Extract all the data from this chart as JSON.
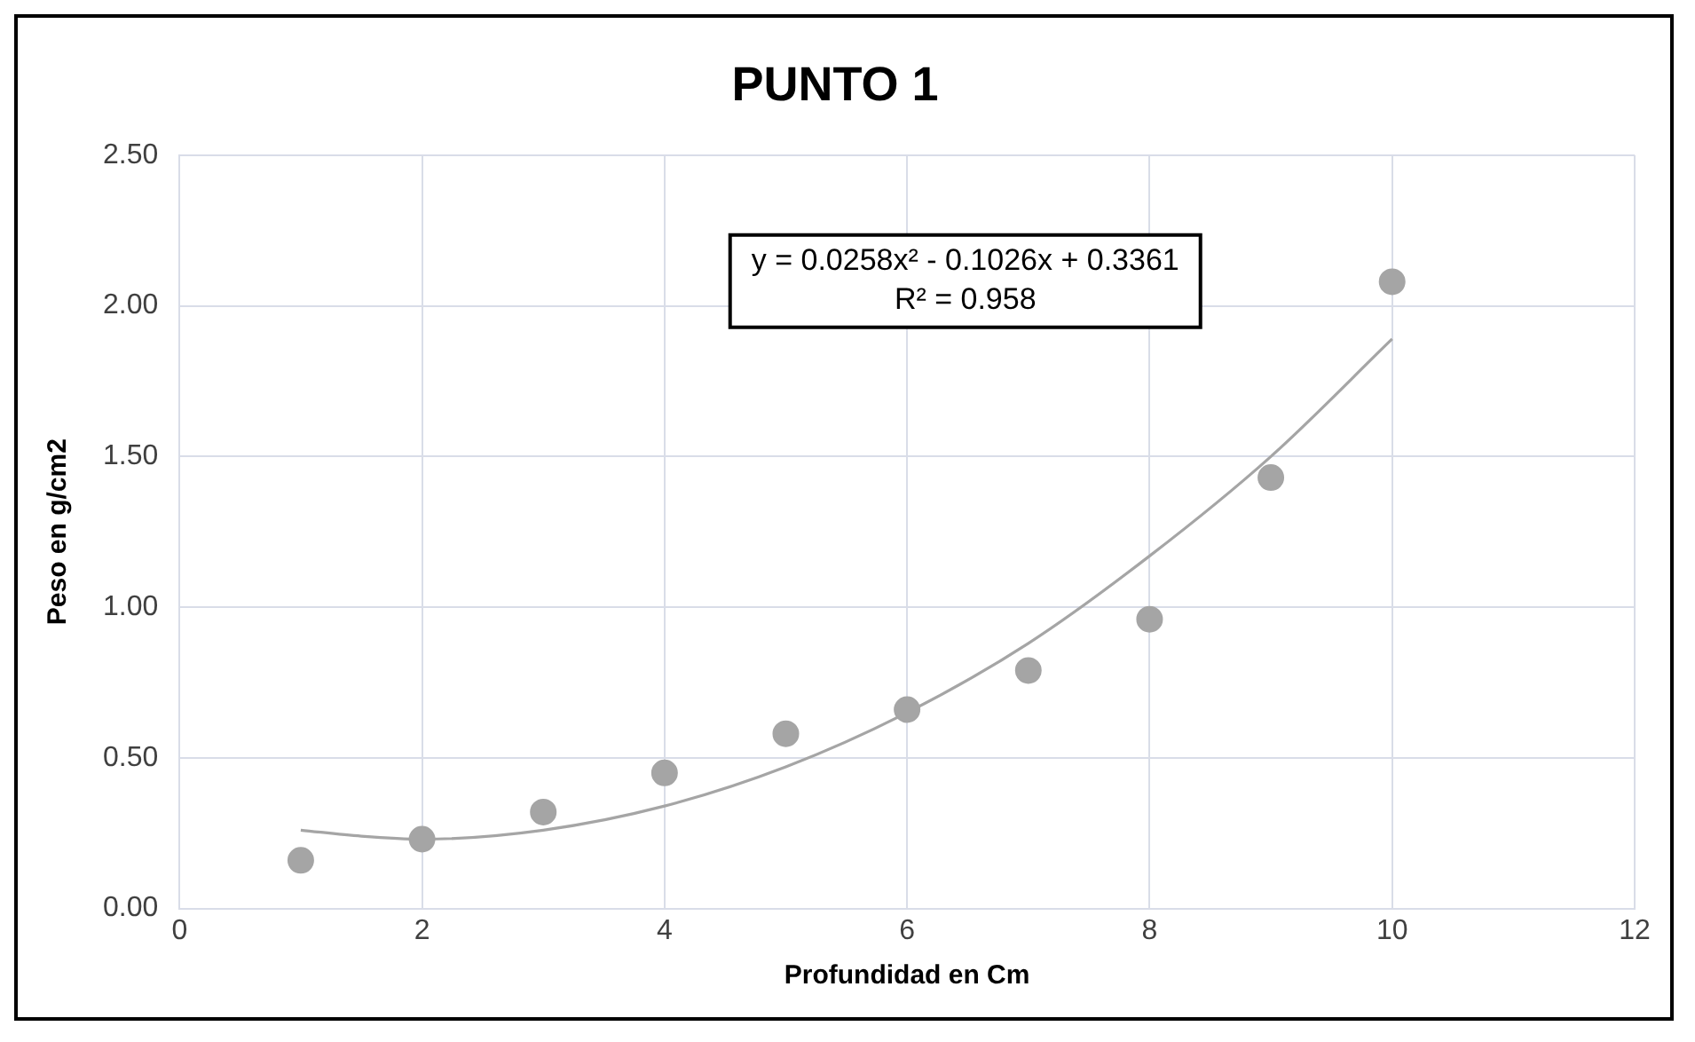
{
  "chart_data": {
    "type": "scatter",
    "title": "PUNTO 1",
    "xlabel": "Profundidad en Cm",
    "ylabel": "Peso en g/cm2",
    "xlim": [
      0,
      12
    ],
    "xticks": [
      0,
      2,
      4,
      6,
      8,
      10,
      12
    ],
    "ylim": [
      0,
      2.5
    ],
    "yticks": [
      {
        "value": 0,
        "label": "0.00"
      },
      {
        "value": 0.5,
        "label": "0.50"
      },
      {
        "value": 1,
        "label": "1.00"
      },
      {
        "value": 1.5,
        "label": "1.50"
      },
      {
        "value": 2,
        "label": "2.00"
      },
      {
        "value": 2.5,
        "label": "2.50"
      }
    ],
    "grid": true,
    "legend": false,
    "marker": "circle",
    "series": [
      {
        "color": "#a5a5a5",
        "x": [
          1,
          2,
          3,
          4,
          5,
          6,
          7,
          8,
          9,
          10
        ],
        "values": [
          0.16,
          0.23,
          0.32,
          0.45,
          0.58,
          0.66,
          0.79,
          0.96,
          1.43,
          2.08
        ]
      },
      {
        "type": "line",
        "color": "#a5a5a5",
        "marker": "none",
        "x": [
          1,
          1.5,
          2,
          3,
          4,
          5,
          6,
          7,
          8,
          9,
          10
        ],
        "values": [
          0.26,
          0.24,
          0.23,
          0.26,
          0.34,
          0.47,
          0.65,
          0.88,
          1.17,
          1.5,
          1.89
        ]
      }
    ],
    "annotations": [
      "y = 0.0258x² - 0.1026x + 0.3361",
      "R² = 0.958"
    ]
  }
}
